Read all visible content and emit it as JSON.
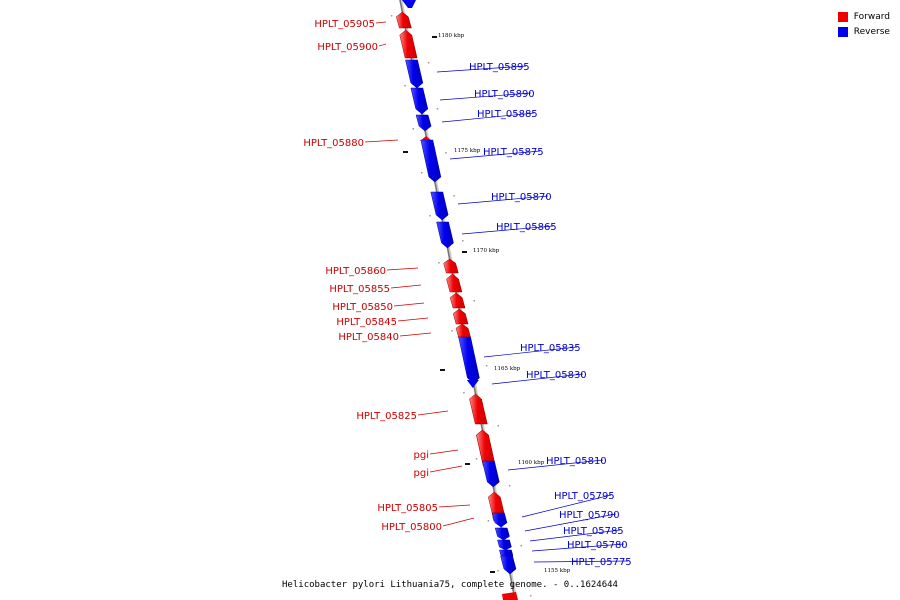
{
  "legend": {
    "forward_label": "Forward",
    "reverse_label": "Reverse",
    "forward_color": "#ee0000",
    "reverse_color": "#0000ee"
  },
  "caption": "Helicobacter pylori Lithuania75, complete genome. - 0..1624644",
  "ticks": [
    "1180 kbp",
    "1175 kbp",
    "1170 kbp",
    "1165 kbp",
    "1160 kbp",
    "1155 kbp"
  ],
  "genes": [
    {
      "name": "HPLT_05905",
      "strand": "forward"
    },
    {
      "name": "HPLT_05900",
      "strand": "forward"
    },
    {
      "name": "HPLT_05895",
      "strand": "reverse"
    },
    {
      "name": "HPLT_05890",
      "strand": "reverse"
    },
    {
      "name": "HPLT_05885",
      "strand": "reverse"
    },
    {
      "name": "HPLT_05880",
      "strand": "forward"
    },
    {
      "name": "HPLT_05875",
      "strand": "reverse"
    },
    {
      "name": "HPLT_05870",
      "strand": "reverse"
    },
    {
      "name": "HPLT_05865",
      "strand": "reverse"
    },
    {
      "name": "HPLT_05860",
      "strand": "forward"
    },
    {
      "name": "HPLT_05855",
      "strand": "forward"
    },
    {
      "name": "HPLT_05850",
      "strand": "forward"
    },
    {
      "name": "HPLT_05845",
      "strand": "forward"
    },
    {
      "name": "HPLT_05840",
      "strand": "forward"
    },
    {
      "name": "HPLT_05835",
      "strand": "reverse"
    },
    {
      "name": "HPLT_05830",
      "strand": "reverse"
    },
    {
      "name": "HPLT_05825",
      "strand": "forward"
    },
    {
      "name": "pgi",
      "strand": "forward"
    },
    {
      "name": "pgi",
      "strand": "forward"
    },
    {
      "name": "HPLT_05810",
      "strand": "reverse"
    },
    {
      "name": "HPLT_05805",
      "strand": "forward"
    },
    {
      "name": "HPLT_05800",
      "strand": "forward"
    },
    {
      "name": "HPLT_05795",
      "strand": "reverse"
    },
    {
      "name": "HPLT_05790",
      "strand": "reverse"
    },
    {
      "name": "HPLT_05785",
      "strand": "reverse"
    },
    {
      "name": "HPLT_05780",
      "strand": "reverse"
    },
    {
      "name": "HPLT_05775",
      "strand": "reverse"
    }
  ]
}
